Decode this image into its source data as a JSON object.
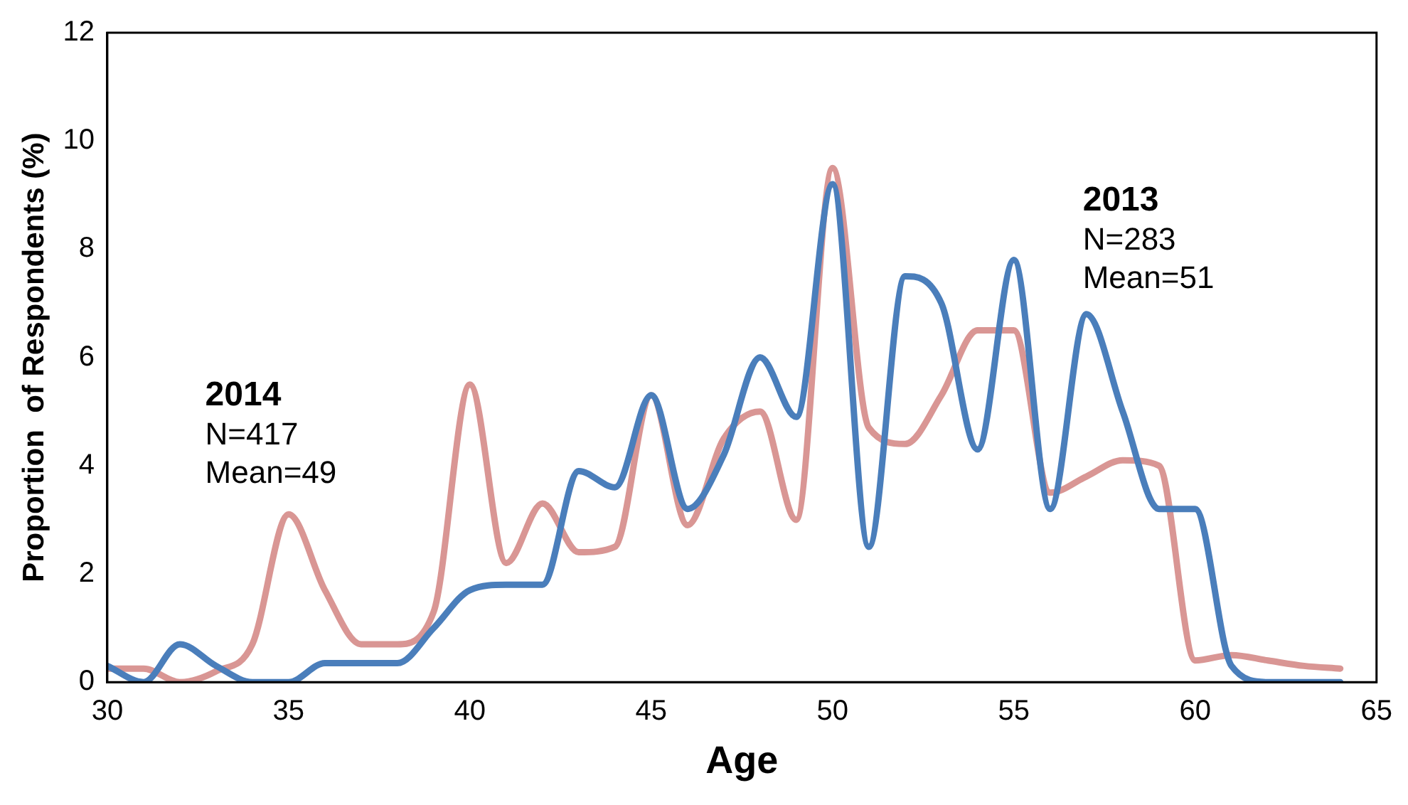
{
  "chart_data": {
    "type": "line",
    "xlabel": "Age",
    "ylabel": "Proportion  of Respondents (%)",
    "x": [
      30,
      31,
      32,
      33,
      34,
      35,
      36,
      37,
      38,
      39,
      40,
      41,
      42,
      43,
      44,
      45,
      46,
      47,
      48,
      49,
      50,
      51,
      52,
      53,
      54,
      55,
      56,
      57,
      58,
      59,
      60,
      61,
      62,
      63,
      64
    ],
    "series": [
      {
        "name": "2013",
        "color": "#4a7ebb",
        "values": [
          0.3,
          0.0,
          0.7,
          0.3,
          0.0,
          0.0,
          0.35,
          0.35,
          0.35,
          1.0,
          1.7,
          1.8,
          1.8,
          3.9,
          3.6,
          5.3,
          3.2,
          4.2,
          6.0,
          4.9,
          9.2,
          2.5,
          7.5,
          7.0,
          4.3,
          7.8,
          3.2,
          6.8,
          5.0,
          3.2,
          3.2,
          0.3,
          0.0,
          0.0,
          0.0
        ]
      },
      {
        "name": "2014",
        "color": "#d99694",
        "values": [
          0.25,
          0.25,
          0.0,
          0.2,
          0.7,
          3.1,
          1.7,
          0.7,
          0.7,
          1.3,
          5.5,
          2.2,
          3.3,
          2.4,
          2.5,
          5.3,
          2.9,
          4.5,
          5.0,
          3.0,
          9.5,
          4.7,
          4.4,
          5.3,
          6.5,
          6.5,
          3.5,
          3.8,
          4.1,
          4.0,
          0.4,
          0.5,
          0.4,
          0.3,
          0.25
        ]
      }
    ],
    "annotations": [
      "N=283",
      "Mean=51",
      "N=417",
      "Mean=49"
    ],
    "xlim": [
      30,
      65
    ],
    "xticks": [
      30,
      35,
      40,
      45,
      50,
      55,
      60,
      65
    ],
    "ylim": [
      0,
      12
    ],
    "yticks": [
      0,
      2,
      4,
      6,
      8,
      10,
      12
    ],
    "grid": false,
    "legend": false,
    "marker": "none",
    "line_style": "solid"
  }
}
